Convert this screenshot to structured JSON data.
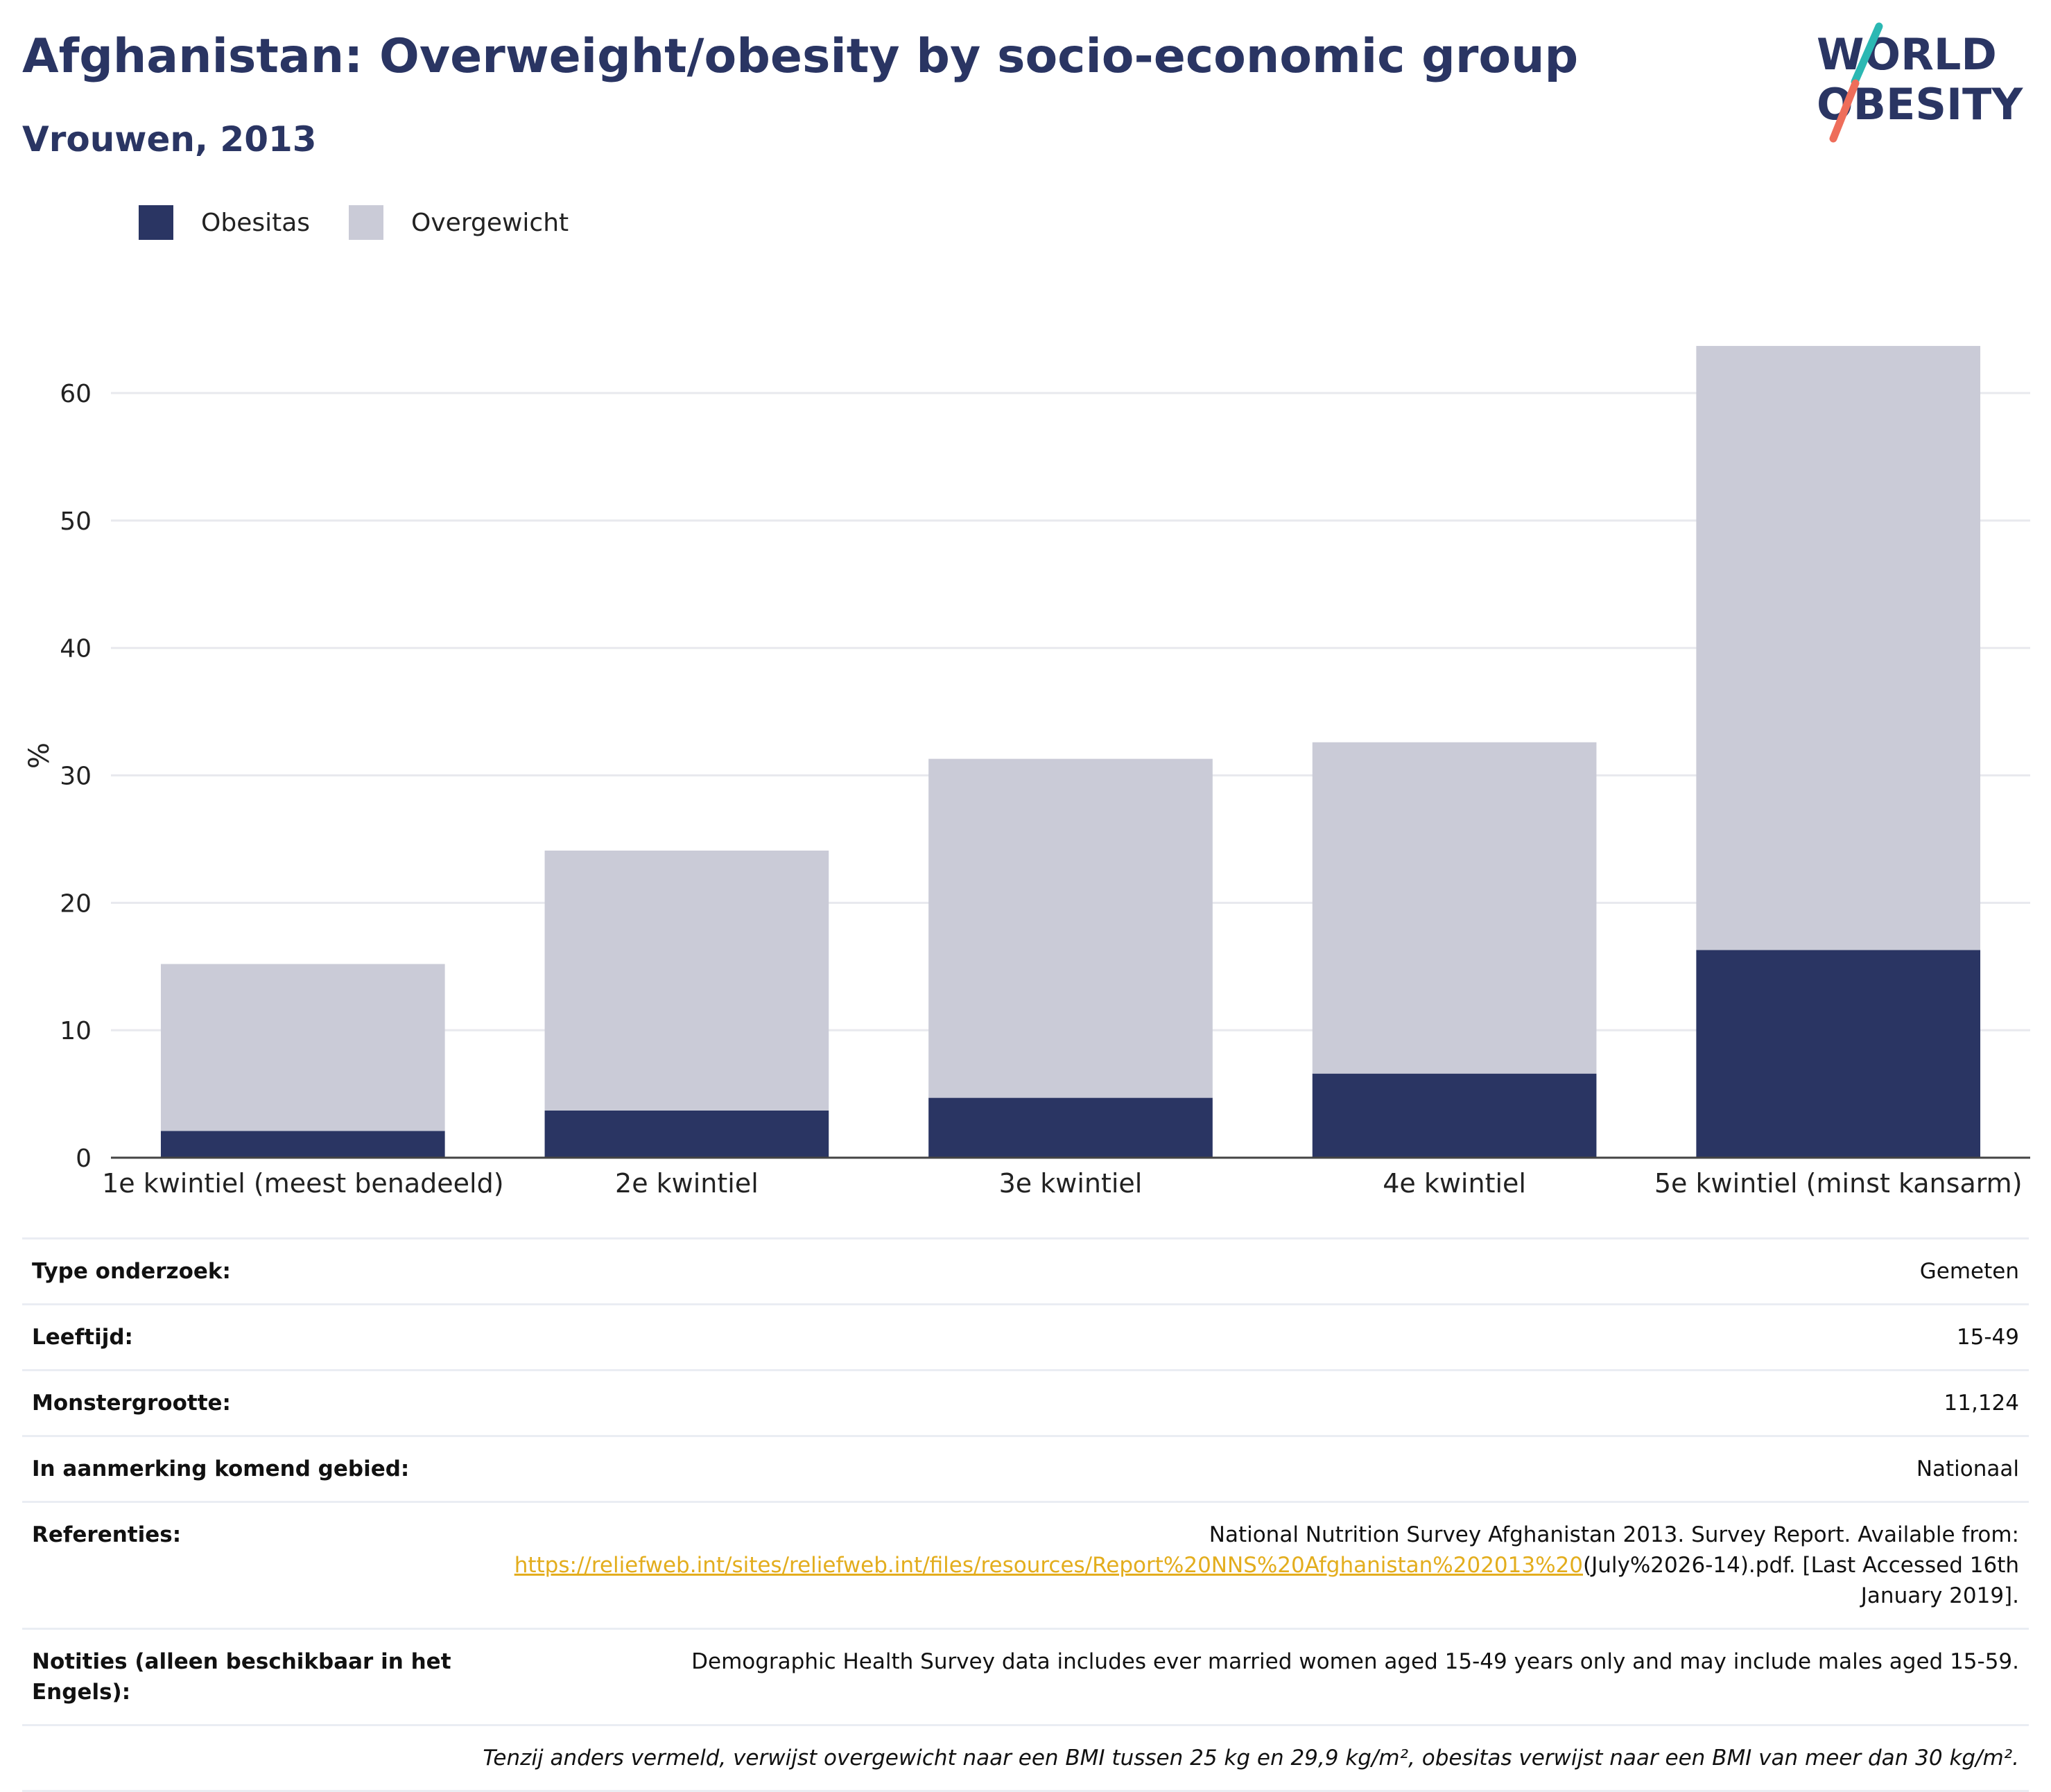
{
  "header": {
    "title": "Afghanistan: Overweight/obesity by socio-economic group",
    "subtitle": "Vrouwen, 2013"
  },
  "logo": {
    "line1": "WORLD",
    "line2": "OBESITY"
  },
  "colors": {
    "obesity": "#2a3563",
    "overweight": "#cacbd7",
    "title": "#2a3563",
    "link": "#e3ad1d"
  },
  "chart_data": {
    "type": "bar",
    "stacked": true,
    "categories": [
      "1e kwintiel (meest benadeeld)",
      "2e kwintiel",
      "3e kwintiel",
      "4e kwintiel",
      "5e kwintiel (minst kansarm)"
    ],
    "series": [
      {
        "name": "Obesitas",
        "color": "#2a3563",
        "values": [
          2.1,
          3.7,
          4.7,
          6.6,
          16.3
        ]
      },
      {
        "name": "Overgewicht",
        "color": "#cacbd7",
        "values": [
          13.1,
          20.4,
          26.6,
          26.0,
          47.4
        ]
      }
    ],
    "ylabel": "%",
    "xlabel": "",
    "ylim": [
      0,
      68
    ],
    "yticks": [
      0,
      10,
      20,
      30,
      40,
      50,
      60
    ],
    "grid": true,
    "legend": "top-left"
  },
  "info": [
    {
      "label": "Type onderzoek:",
      "value": "Gemeten"
    },
    {
      "label": "Leeftijd:",
      "value": "15-49"
    },
    {
      "label": "Monstergrootte:",
      "value": "11,124"
    },
    {
      "label": "In aanmerking komend gebied:",
      "value": "Nationaal"
    }
  ],
  "references": {
    "label": "Referenties:",
    "text_before": "National Nutrition Survey Afghanistan 2013. Survey Report. Available from:",
    "link": "https://reliefweb.int/sites/reliefweb.int/files/resources/Report%20NNS%20Afghanistan%202013%20",
    "text_after": "(July%2026-14).pdf. [Last Accessed 16th January 2019]."
  },
  "notes": {
    "label": "Notities (alleen beschikbaar in het Engels):",
    "value": "Demographic Health Survey data includes ever married women aged 15-49 years only and may include males aged 15-59."
  },
  "footnote": "Tenzij anders vermeld, verwijst overgewicht naar een BMI tussen 25 kg en 29,9 kg/m², obesitas verwijst naar een BMI van meer dan 30 kg/m²."
}
